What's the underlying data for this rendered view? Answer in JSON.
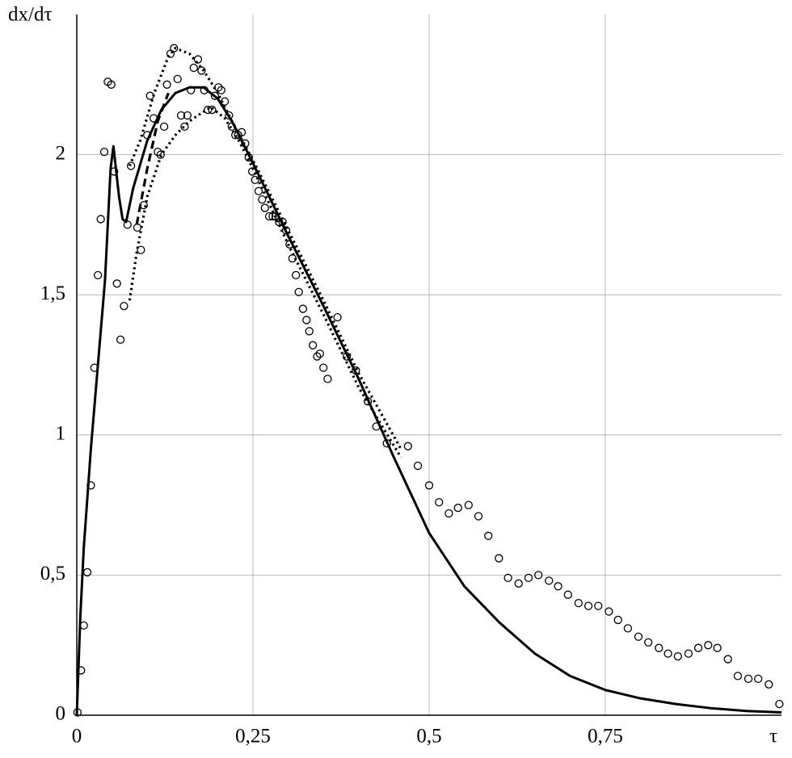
{
  "chart_data": {
    "type": "line",
    "y_label": "dx/dτ",
    "x_label": "τ",
    "xlim": [
      0,
      1
    ],
    "ylim": [
      0,
      2.5
    ],
    "xticks": [
      0,
      {
        "value": 0.25,
        "label": "0,25"
      },
      {
        "value": 0.5,
        "label": "0,5"
      },
      {
        "value": 0.75,
        "label": "0,75"
      }
    ],
    "yticks": [
      0,
      {
        "value": 0.5,
        "label": "0,5"
      },
      1,
      {
        "value": 1.5,
        "label": "1,5"
      },
      2
    ],
    "grid": true,
    "series": [
      {
        "style": "solid",
        "color": "#000000",
        "x": [
          0,
          0.005,
          0.01,
          0.02,
          0.03,
          0.04,
          0.048,
          0.052,
          0.06,
          0.065,
          0.07,
          0.08,
          0.1,
          0.12,
          0.14,
          0.16,
          0.18,
          0.2,
          0.22,
          0.25,
          0.3,
          0.35,
          0.4,
          0.45,
          0.5,
          0.55,
          0.6,
          0.65,
          0.7,
          0.75,
          0.8,
          0.85,
          0.9,
          0.95,
          1.0
        ],
        "values": [
          0,
          0.35,
          0.6,
          0.95,
          1.25,
          1.55,
          1.95,
          2.03,
          1.85,
          1.77,
          1.76,
          1.88,
          2.05,
          2.16,
          2.22,
          2.24,
          2.24,
          2.2,
          2.12,
          1.97,
          1.71,
          1.46,
          1.2,
          0.92,
          0.65,
          0.46,
          0.33,
          0.22,
          0.14,
          0.09,
          0.06,
          0.04,
          0.025,
          0.015,
          0.01
        ]
      },
      {
        "style": "dashed",
        "color": "#000000",
        "x": [
          0.085,
          0.1,
          0.115,
          0.13
        ],
        "values": [
          1.75,
          1.95,
          2.12,
          2.22
        ]
      },
      {
        "style": "dotted",
        "color": "#000000",
        "x": [
          0.075,
          0.09,
          0.11,
          0.13,
          0.14,
          0.16,
          0.18,
          0.2,
          0.22,
          0.25,
          0.3,
          0.35,
          0.4,
          0.46
        ],
        "values": [
          1.96,
          2.05,
          2.22,
          2.35,
          2.38,
          2.36,
          2.3,
          2.22,
          2.12,
          1.98,
          1.73,
          1.48,
          1.22,
          0.95
        ]
      },
      {
        "style": "dotted",
        "color": "#000000",
        "x": [
          0.075,
          0.085,
          0.1,
          0.12,
          0.14,
          0.16,
          0.19,
          0.21,
          0.23,
          0.25,
          0.3,
          0.35,
          0.4,
          0.46
        ],
        "values": [
          1.48,
          1.65,
          1.85,
          2.0,
          2.07,
          2.12,
          2.17,
          2.13,
          2.05,
          1.95,
          1.68,
          1.43,
          1.17,
          0.92
        ]
      },
      {
        "style": "markers",
        "color": "#000000",
        "x": [
          0.001,
          0.006,
          0.01,
          0.015,
          0.02,
          0.025,
          0.03,
          0.034,
          0.039,
          0.044,
          0.049,
          0.053,
          0.057,
          0.062,
          0.067,
          0.072,
          0.077,
          0.086,
          0.091,
          0.095,
          0.1,
          0.104,
          0.109,
          0.115,
          0.119,
          0.124,
          0.128,
          0.133,
          0.138,
          0.143,
          0.148,
          0.153,
          0.157,
          0.162,
          0.166,
          0.172,
          0.177,
          0.181,
          0.186,
          0.192,
          0.196,
          0.201,
          0.205,
          0.21,
          0.216,
          0.22,
          0.225,
          0.229,
          0.234,
          0.239,
          0.244,
          0.249,
          0.253,
          0.258,
          0.263,
          0.267,
          0.273,
          0.278,
          0.282,
          0.287,
          0.292,
          0.297,
          0.302,
          0.306,
          0.311,
          0.315,
          0.321,
          0.326,
          0.33,
          0.335,
          0.341,
          0.345,
          0.35,
          0.356,
          0.37,
          0.383,
          0.396,
          0.413,
          0.425,
          0.44,
          0.47,
          0.484,
          0.5,
          0.514,
          0.528,
          0.541,
          0.556,
          0.57,
          0.584,
          0.599,
          0.612,
          0.627,
          0.641,
          0.655,
          0.67,
          0.683,
          0.697,
          0.712,
          0.726,
          0.74,
          0.755,
          0.768,
          0.782,
          0.797,
          0.811,
          0.826,
          0.839,
          0.853,
          0.868,
          0.882,
          0.896,
          0.909,
          0.924,
          0.938,
          0.953,
          0.967,
          0.982,
          0.997
        ],
        "values": [
          0.01,
          0.16,
          0.32,
          0.51,
          0.82,
          1.24,
          1.57,
          1.77,
          2.01,
          2.26,
          2.25,
          1.94,
          1.54,
          1.34,
          1.46,
          1.75,
          1.96,
          1.74,
          1.66,
          1.82,
          2.07,
          2.21,
          2.13,
          2.01,
          2.0,
          2.1,
          2.25,
          2.36,
          2.38,
          2.27,
          2.14,
          2.1,
          2.14,
          2.23,
          2.31,
          2.34,
          2.3,
          2.23,
          2.16,
          2.16,
          2.21,
          2.24,
          2.23,
          2.19,
          2.14,
          2.1,
          2.07,
          2.07,
          2.08,
          2.04,
          1.99,
          1.94,
          1.91,
          1.87,
          1.84,
          1.81,
          1.78,
          1.78,
          1.78,
          1.76,
          1.76,
          1.73,
          1.68,
          1.63,
          1.57,
          1.51,
          1.45,
          1.41,
          1.37,
          1.32,
          1.28,
          1.29,
          1.24,
          1.2,
          1.42,
          1.28,
          1.23,
          1.12,
          1.03,
          0.97,
          0.96,
          0.89,
          0.82,
          0.76,
          0.72,
          0.74,
          0.75,
          0.71,
          0.64,
          0.56,
          0.49,
          0.47,
          0.49,
          0.5,
          0.48,
          0.46,
          0.43,
          0.4,
          0.39,
          0.39,
          0.37,
          0.34,
          0.31,
          0.28,
          0.26,
          0.24,
          0.22,
          0.21,
          0.22,
          0.24,
          0.25,
          0.24,
          0.2,
          0.14,
          0.13,
          0.13,
          0.11,
          0.04
        ]
      }
    ]
  }
}
